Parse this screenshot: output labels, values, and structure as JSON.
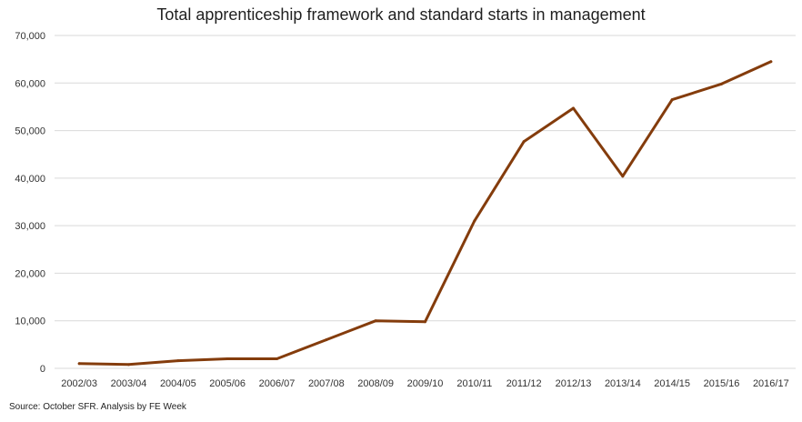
{
  "chart_data": {
    "type": "line",
    "title": "Total apprenticeship framework and standard starts in management",
    "xlabel": "",
    "ylabel": "",
    "categories": [
      "2002/03",
      "2003/04",
      "2004/05",
      "2005/06",
      "2006/07",
      "2007/08",
      "2008/09",
      "2009/10",
      "2010/11",
      "2011/12",
      "2012/13",
      "2013/14",
      "2014/15",
      "2015/16",
      "2016/17"
    ],
    "series": [
      {
        "values": [
          1000,
          800,
          1600,
          2000,
          2000,
          6000,
          10000,
          9800,
          31000,
          47700,
          54700,
          40400,
          56500,
          59800,
          64500
        ]
      }
    ],
    "ylim": [
      0,
      70000
    ],
    "yticks": [
      "0",
      "10,000",
      "20,000",
      "30,000",
      "40,000",
      "50,000",
      "60,000",
      "70,000"
    ],
    "ytick_values": [
      0,
      10000,
      20000,
      30000,
      40000,
      50000,
      60000,
      70000
    ],
    "grid": true,
    "legend": "none",
    "line_color": "#843c0c",
    "gridline_color": "#d9d9d9"
  },
  "source": "Source: October SFR. Analysis by FE Week"
}
